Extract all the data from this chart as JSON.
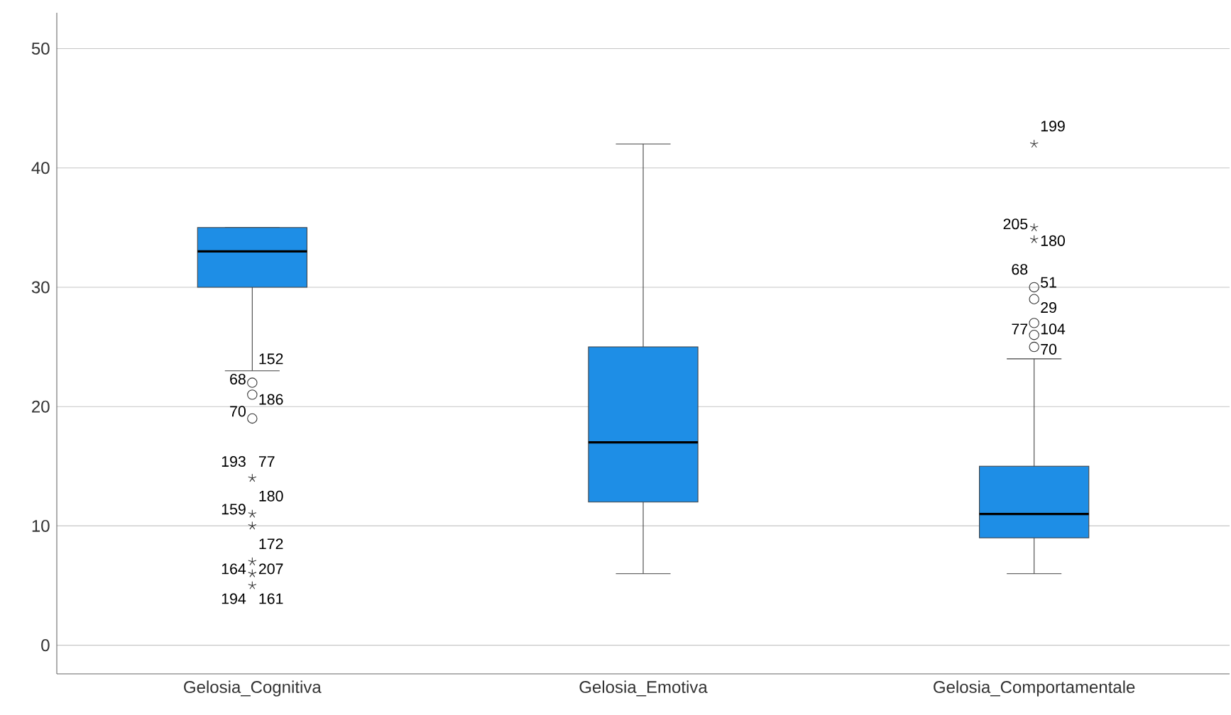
{
  "chart_data": {
    "type": "box",
    "categories": [
      "Gelosia_Cognitiva",
      "Gelosia_Emotiva",
      "Gelosia_Comportamentale"
    ],
    "color": "#1e8ee6",
    "ylim": [
      -2.4,
      53
    ],
    "yticks": [
      0,
      10,
      20,
      30,
      40,
      50
    ],
    "grid": "y",
    "boxes": [
      {
        "low": 23,
        "q1": 30,
        "median": 33,
        "q3": 35,
        "high": 35,
        "outliers": [
          22,
          21,
          19,
          14,
          11,
          10,
          7,
          6,
          5
        ]
      },
      {
        "low": 6,
        "q1": 12,
        "median": 17,
        "q3": 25,
        "high": 42
      },
      {
        "low": 6,
        "q1": 9,
        "median": 11,
        "q3": 15,
        "high": 24,
        "outliers": [
          42,
          35,
          34,
          30,
          29,
          27,
          26,
          25
        ]
      }
    ],
    "annotations": [
      "152",
      "68",
      "186",
      "70",
      "193",
      "77",
      "159",
      "180",
      "172",
      "164",
      "207",
      "194",
      "161",
      "199",
      "180",
      "205",
      "68",
      "51",
      "29",
      "104",
      "77",
      "70"
    ]
  }
}
